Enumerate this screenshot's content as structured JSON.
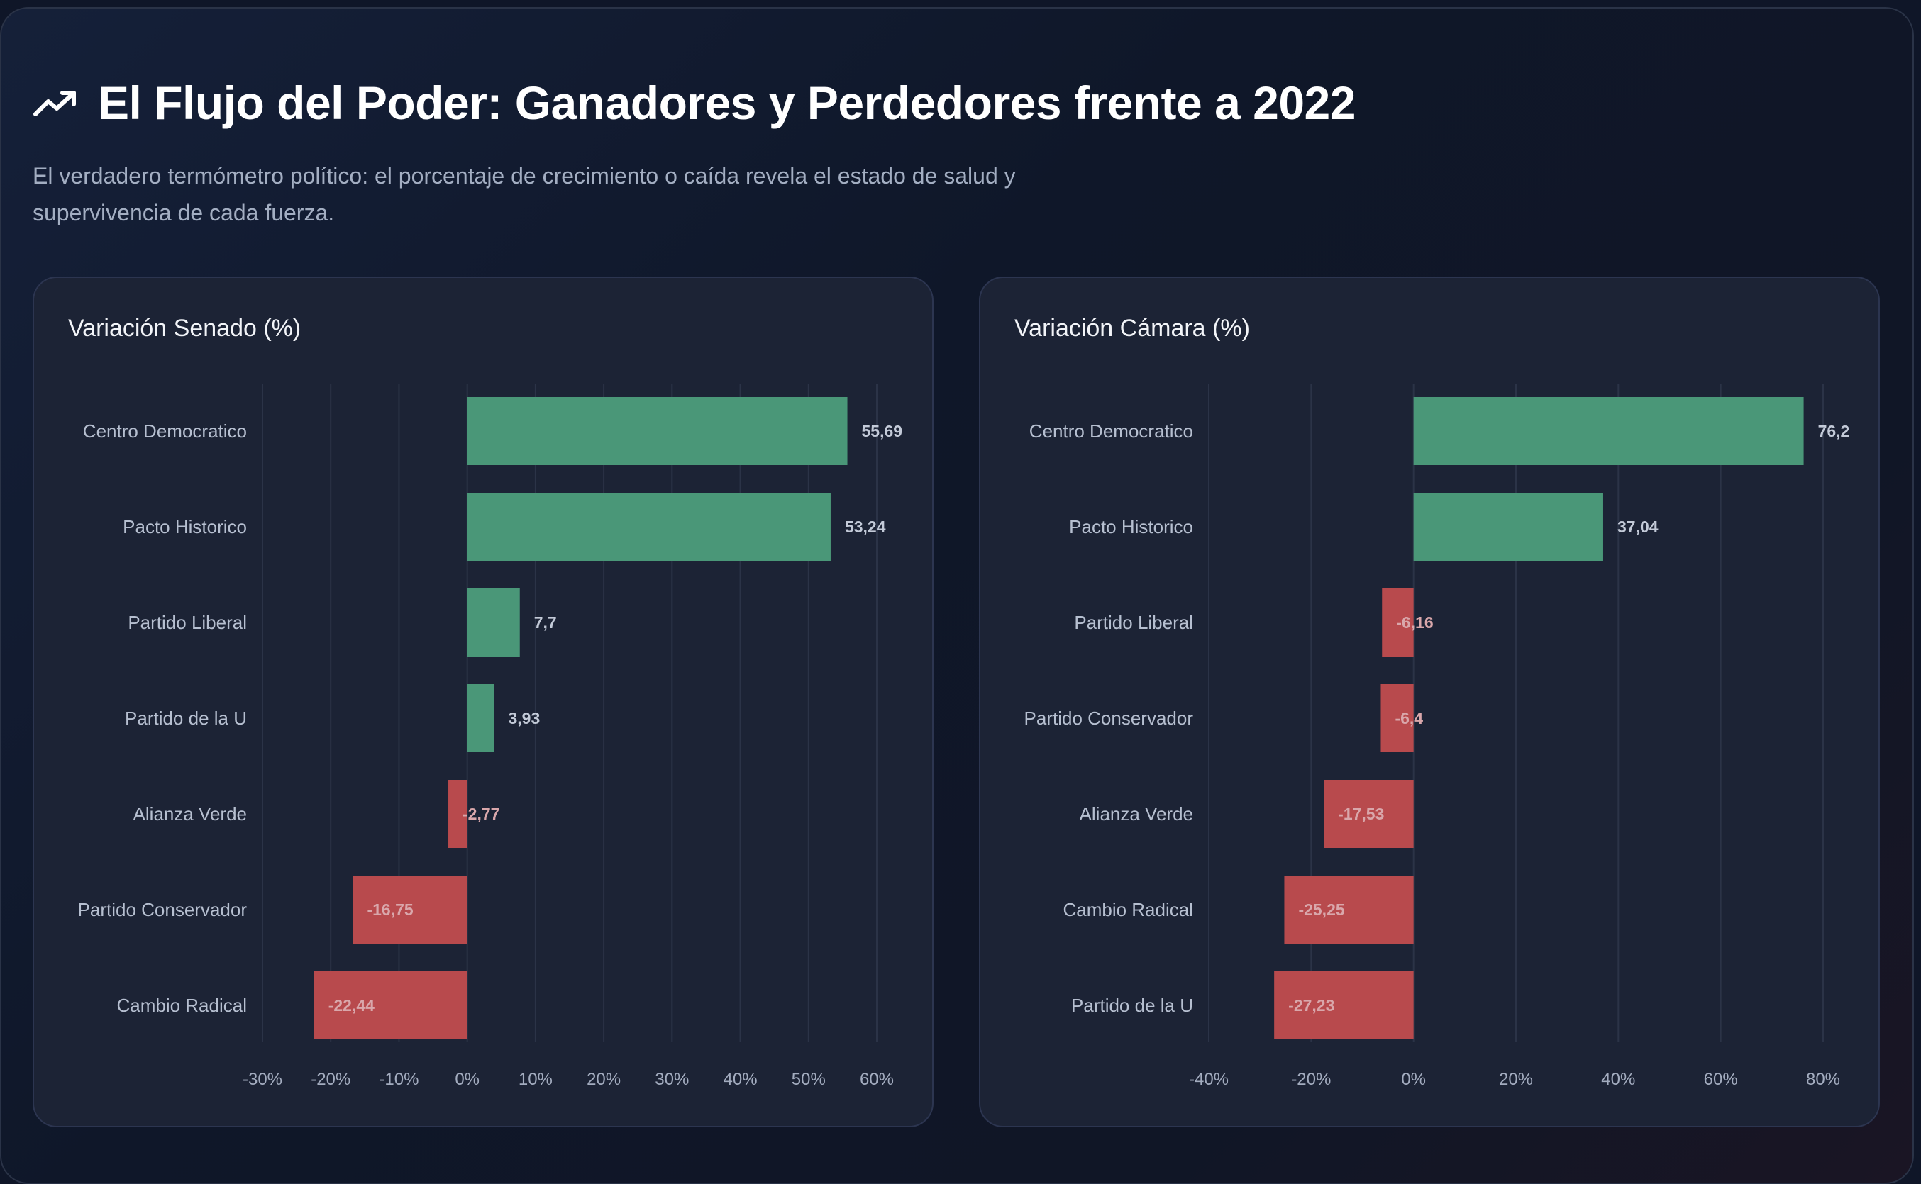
{
  "header": {
    "title": "El Flujo del Poder: Ganadores y Perdedores frente a 2022",
    "subtitle": "El verdadero termómetro político: el porcentaje de crecimiento o caída revela el estado de salud y supervivencia de cada fuerza.",
    "icon": "trending-up-icon"
  },
  "colors": {
    "positive": "#4a9778",
    "negative": "#b84a4d",
    "grid": "#2b3347"
  },
  "chart_data": [
    {
      "type": "bar",
      "orientation": "horizontal",
      "title": "Variación Senado (%)",
      "categories": [
        "Centro Democratico",
        "Pacto Historico",
        "Partido Liberal",
        "Partido de la U",
        "Alianza Verde",
        "Partido Conservador",
        "Cambio Radical"
      ],
      "values": [
        55.69,
        53.24,
        7.7,
        3.93,
        -2.77,
        -16.75,
        -22.44
      ],
      "labels": [
        "55,69",
        "53,24",
        "7,7",
        "3,93",
        "-2,77",
        "-16,75",
        "-22,44"
      ],
      "xlim": [
        -30,
        60
      ],
      "xticks": [
        -30,
        -20,
        -10,
        0,
        10,
        20,
        30,
        40,
        50,
        60
      ],
      "xtick_labels": [
        "-30%",
        "-20%",
        "-10%",
        "0%",
        "10%",
        "20%",
        "30%",
        "40%",
        "50%",
        "60%"
      ],
      "grid": true
    },
    {
      "type": "bar",
      "orientation": "horizontal",
      "title": "Variación Cámara (%)",
      "categories": [
        "Centro Democratico",
        "Pacto Historico",
        "Partido Liberal",
        "Partido Conservador",
        "Alianza Verde",
        "Cambio Radical",
        "Partido de la U"
      ],
      "values": [
        76.2,
        37.04,
        -6.16,
        -6.4,
        -17.53,
        -25.25,
        -27.23
      ],
      "labels": [
        "76,2",
        "37,04",
        "-6,16",
        "-6,4",
        "-17,53",
        "-25,25",
        "-27,23"
      ],
      "xlim": [
        -40,
        80
      ],
      "xticks": [
        -40,
        -20,
        0,
        20,
        40,
        60,
        80
      ],
      "xtick_labels": [
        "-40%",
        "-20%",
        "0%",
        "20%",
        "40%",
        "60%",
        "80%"
      ],
      "grid": true
    }
  ]
}
